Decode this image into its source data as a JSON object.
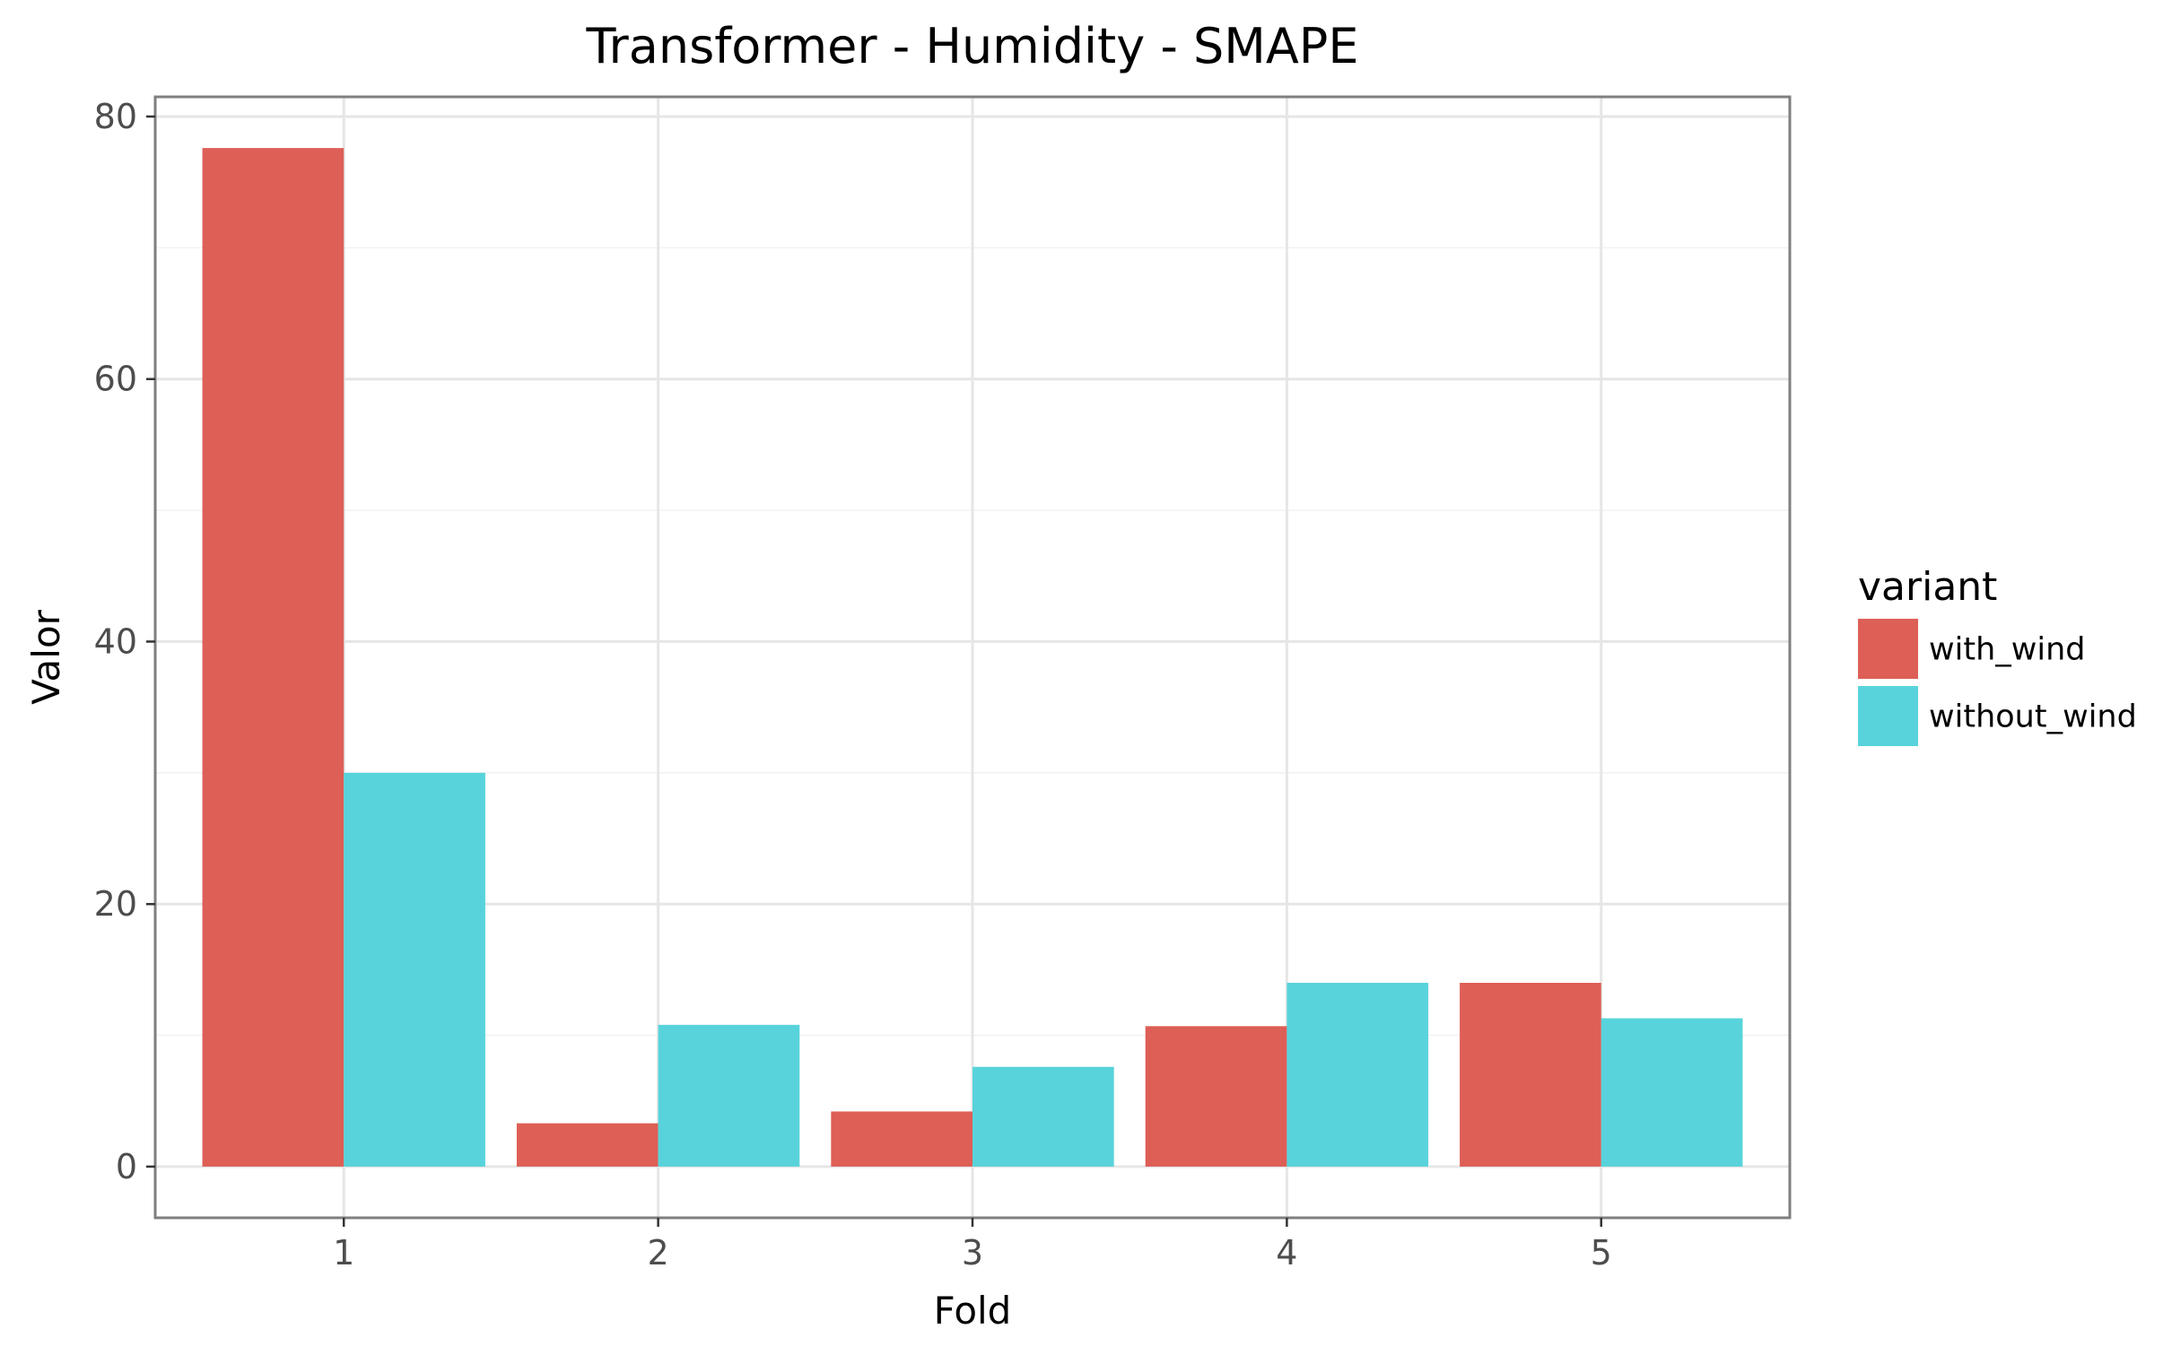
{
  "chart_data": {
    "type": "bar",
    "title": "Transformer - Humidity - SMAPE",
    "xlabel": "Fold",
    "ylabel": "Valor",
    "categories": [
      "1",
      "2",
      "3",
      "4",
      "5"
    ],
    "series": [
      {
        "name": "with_wind",
        "color": "#dd5f56",
        "values": [
          77.6,
          3.3,
          4.2,
          10.7,
          14.0
        ]
      },
      {
        "name": "without_wind",
        "color": "#58d3db",
        "values": [
          30.0,
          10.8,
          7.6,
          14.0,
          11.3
        ]
      }
    ],
    "ylim": [
      -3.9,
      81.5
    ],
    "yticks": [
      0,
      20,
      40,
      60,
      80
    ],
    "grid": true,
    "legend": {
      "title": "variant",
      "position": "right"
    }
  }
}
